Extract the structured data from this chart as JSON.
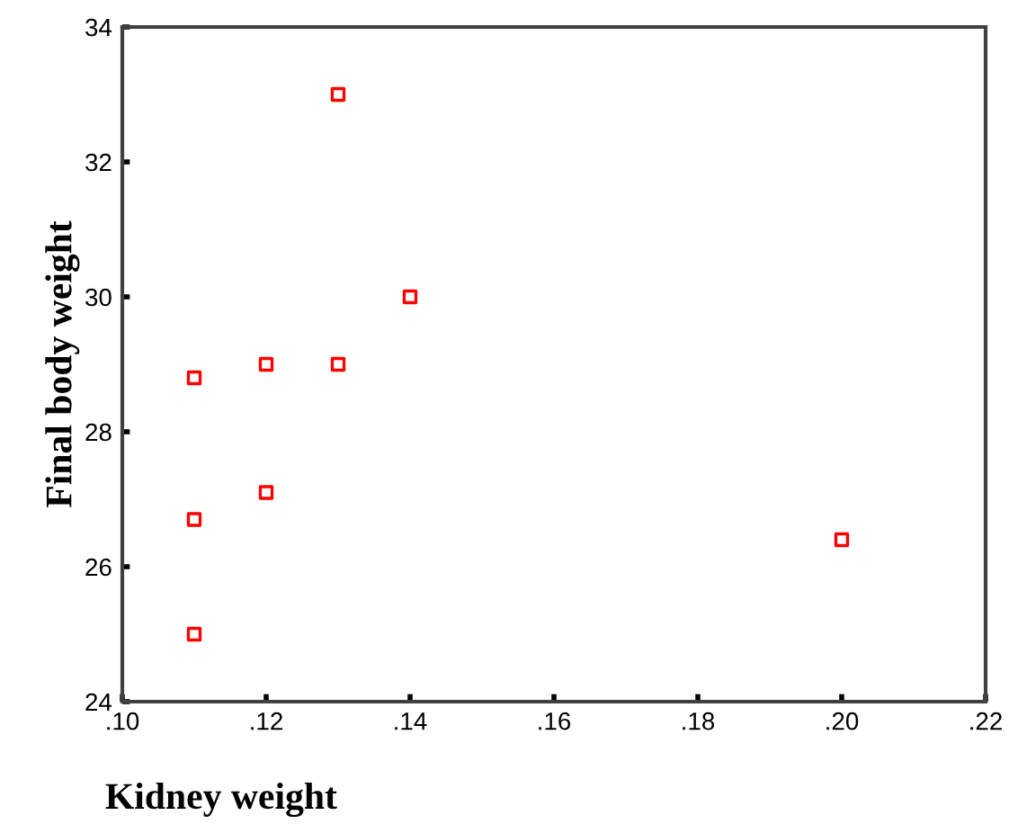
{
  "chart_data": {
    "type": "scatter",
    "xlabel": "Kidney weight",
    "ylabel": "Final body weight",
    "x": [
      0.11,
      0.11,
      0.11,
      0.12,
      0.12,
      0.13,
      0.13,
      0.14,
      0.2
    ],
    "series": [
      {
        "color": "#ff0000",
        "values": [
          28.8,
          26.7,
          25.0,
          29.0,
          27.1,
          33.0,
          29.0,
          30.0,
          26.4
        ]
      }
    ],
    "marker": "square",
    "grid": false,
    "legend": false,
    "xlim": [
      0.1,
      0.22
    ],
    "ylim": [
      24,
      34
    ],
    "xticks": [
      {
        "value": 0.1,
        "label": ".10"
      },
      {
        "value": 0.12,
        "label": ".12"
      },
      {
        "value": 0.14,
        "label": ".14"
      },
      {
        "value": 0.16,
        "label": ".16"
      },
      {
        "value": 0.18,
        "label": ".18"
      },
      {
        "value": 0.2,
        "label": ".20"
      },
      {
        "value": 0.22,
        "label": ".22"
      }
    ],
    "yticks": [
      24,
      26,
      28,
      30,
      32,
      34
    ]
  }
}
